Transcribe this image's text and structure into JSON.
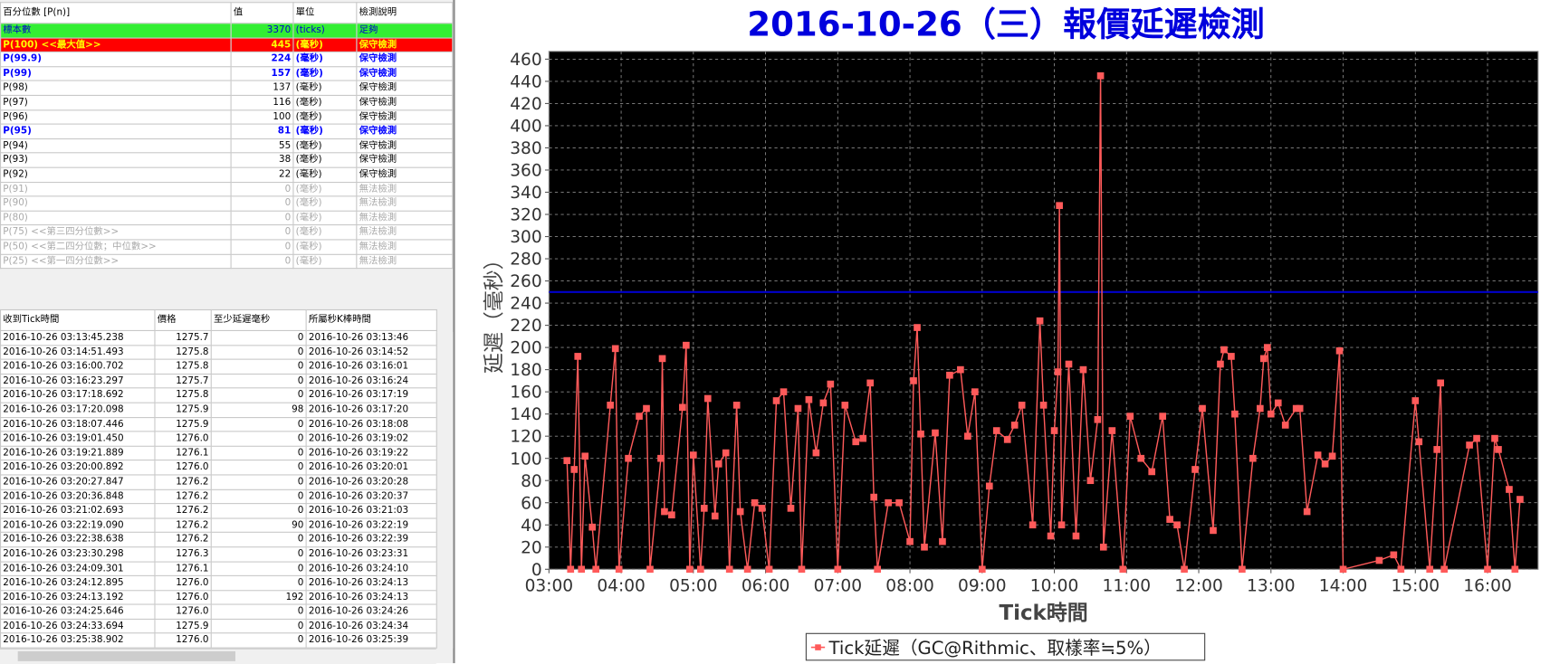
{
  "percentile_table": {
    "headers": [
      "百分位數 [P(n)]",
      "值",
      "單位",
      "檢測說明"
    ],
    "rows": [
      {
        "style": "green",
        "cells": [
          "標本數",
          "3370",
          "(ticks)",
          "足夠"
        ]
      },
      {
        "style": "red",
        "cells": [
          "P(100)  <<最大值>>",
          "445",
          "(毫秒)",
          "保守檢測"
        ]
      },
      {
        "style": "blue",
        "cells": [
          "P(99.9)",
          "224",
          "(毫秒)",
          "保守檢測"
        ]
      },
      {
        "style": "blue",
        "cells": [
          "P(99)",
          "157",
          "(毫秒)",
          "保守檢測"
        ]
      },
      {
        "style": "normal",
        "cells": [
          "P(98)",
          "137",
          "(毫秒)",
          "保守檢測"
        ]
      },
      {
        "style": "normal",
        "cells": [
          "P(97)",
          "116",
          "(毫秒)",
          "保守檢測"
        ]
      },
      {
        "style": "normal",
        "cells": [
          "P(96)",
          "100",
          "(毫秒)",
          "保守檢測"
        ]
      },
      {
        "style": "blue",
        "cells": [
          "P(95)",
          "81",
          "(毫秒)",
          "保守檢測"
        ]
      },
      {
        "style": "normal",
        "cells": [
          "P(94)",
          "55",
          "(毫秒)",
          "保守檢測"
        ]
      },
      {
        "style": "normal",
        "cells": [
          "P(93)",
          "38",
          "(毫秒)",
          "保守檢測"
        ]
      },
      {
        "style": "normal",
        "cells": [
          "P(92)",
          "22",
          "(毫秒)",
          "保守檢測"
        ]
      },
      {
        "style": "gray",
        "cells": [
          "P(91)",
          "0",
          "(毫秒)",
          "無法檢測"
        ]
      },
      {
        "style": "gray",
        "cells": [
          "P(90)",
          "0",
          "(毫秒)",
          "無法檢測"
        ]
      },
      {
        "style": "gray",
        "cells": [
          "P(80)",
          "0",
          "(毫秒)",
          "無法檢測"
        ]
      },
      {
        "style": "gray",
        "cells": [
          "P(75)  <<第三四分位數>>",
          "0",
          "(毫秒)",
          "無法檢測"
        ]
      },
      {
        "style": "gray",
        "cells": [
          "P(50)  <<第二四分位數；中位數>>",
          "0",
          "(毫秒)",
          "無法檢測"
        ]
      },
      {
        "style": "gray",
        "cells": [
          "P(25)  <<第一四分位數>>",
          "0",
          "(毫秒)",
          "無法檢測"
        ]
      }
    ]
  },
  "tick_table": {
    "headers": [
      "收到Tick時間",
      "價格",
      "至少延遲毫秒",
      "所屬秒K棒時間"
    ],
    "rows": [
      [
        "2016-10-26 03:13:45.238",
        "1275.7",
        "0",
        "2016-10-26 03:13:46"
      ],
      [
        "2016-10-26 03:14:51.493",
        "1275.8",
        "0",
        "2016-10-26 03:14:52"
      ],
      [
        "2016-10-26 03:16:00.702",
        "1275.8",
        "0",
        "2016-10-26 03:16:01"
      ],
      [
        "2016-10-26 03:16:23.297",
        "1275.7",
        "0",
        "2016-10-26 03:16:24"
      ],
      [
        "2016-10-26 03:17:18.692",
        "1275.8",
        "0",
        "2016-10-26 03:17:19"
      ],
      [
        "2016-10-26 03:17:20.098",
        "1275.9",
        "98",
        "2016-10-26 03:17:20"
      ],
      [
        "2016-10-26 03:18:07.446",
        "1275.9",
        "0",
        "2016-10-26 03:18:08"
      ],
      [
        "2016-10-26 03:19:01.450",
        "1276.0",
        "0",
        "2016-10-26 03:19:02"
      ],
      [
        "2016-10-26 03:19:21.889",
        "1276.1",
        "0",
        "2016-10-26 03:19:22"
      ],
      [
        "2016-10-26 03:20:00.892",
        "1276.0",
        "0",
        "2016-10-26 03:20:01"
      ],
      [
        "2016-10-26 03:20:27.847",
        "1276.2",
        "0",
        "2016-10-26 03:20:28"
      ],
      [
        "2016-10-26 03:20:36.848",
        "1276.2",
        "0",
        "2016-10-26 03:20:37"
      ],
      [
        "2016-10-26 03:21:02.693",
        "1276.2",
        "0",
        "2016-10-26 03:21:03"
      ],
      [
        "2016-10-26 03:22:19.090",
        "1276.2",
        "90",
        "2016-10-26 03:22:19"
      ],
      [
        "2016-10-26 03:22:38.638",
        "1276.2",
        "0",
        "2016-10-26 03:22:39"
      ],
      [
        "2016-10-26 03:23:30.298",
        "1276.3",
        "0",
        "2016-10-26 03:23:31"
      ],
      [
        "2016-10-26 03:24:09.301",
        "1276.1",
        "0",
        "2016-10-26 03:24:10"
      ],
      [
        "2016-10-26 03:24:12.895",
        "1276.0",
        "0",
        "2016-10-26 03:24:13"
      ],
      [
        "2016-10-26 03:24:13.192",
        "1276.0",
        "192",
        "2016-10-26 03:24:13"
      ],
      [
        "2016-10-26 03:24:25.646",
        "1276.0",
        "0",
        "2016-10-26 03:24:26"
      ],
      [
        "2016-10-26 03:24:33.694",
        "1275.9",
        "0",
        "2016-10-26 03:24:34"
      ],
      [
        "2016-10-26 03:25:38.902",
        "1276.0",
        "0",
        "2016-10-26 03:25:39"
      ]
    ]
  },
  "chart_data": {
    "type": "line",
    "title": "2016-10-26（三）報價延遲檢測",
    "x_label": "Tick時間",
    "y_label": "延遲（毫秒）",
    "xlim": [
      3,
      16.7
    ],
    "xticks": [
      {
        "value": 3,
        "label": "03:00"
      },
      {
        "value": 4,
        "label": "04:00"
      },
      {
        "value": 5,
        "label": "05:00"
      },
      {
        "value": 6,
        "label": "06:00"
      },
      {
        "value": 7,
        "label": "07:00"
      },
      {
        "value": 8,
        "label": "08:00"
      },
      {
        "value": 9,
        "label": "09:00"
      },
      {
        "value": 10,
        "label": "10:00"
      },
      {
        "value": 11,
        "label": "11:00"
      },
      {
        "value": 12,
        "label": "12:00"
      },
      {
        "value": 13,
        "label": "13:00"
      },
      {
        "value": 14,
        "label": "14:00"
      },
      {
        "value": 15,
        "label": "15:00"
      },
      {
        "value": 16,
        "label": "16:00"
      }
    ],
    "ylim": [
      0,
      467
    ],
    "yticks": [
      0,
      20,
      40,
      60,
      80,
      100,
      120,
      140,
      160,
      180,
      200,
      220,
      240,
      260,
      280,
      300,
      320,
      340,
      360,
      380,
      400,
      420,
      440,
      460
    ],
    "grid": true,
    "background": "#000000",
    "title_color": "#0000dd",
    "reference_line": {
      "value": 250,
      "color": "#0000cc"
    },
    "series": [
      {
        "name": "Tick延遲（GC@Rithmic、取樣率≒5%）",
        "color": "#ff5a5a",
        "x": [
          3.25,
          3.3,
          3.35,
          3.4,
          3.45,
          3.5,
          3.6,
          3.65,
          3.85,
          3.92,
          3.97,
          4.1,
          4.25,
          4.35,
          4.4,
          4.55,
          4.57,
          4.6,
          4.7,
          4.85,
          4.9,
          4.95,
          5.0,
          5.1,
          5.15,
          5.2,
          5.3,
          5.35,
          5.45,
          5.5,
          5.6,
          5.65,
          5.75,
          5.85,
          5.95,
          6.05,
          6.15,
          6.25,
          6.35,
          6.45,
          6.5,
          6.6,
          6.7,
          6.8,
          6.9,
          7.0,
          7.1,
          7.25,
          7.35,
          7.45,
          7.5,
          7.55,
          7.7,
          7.85,
          8.0,
          8.05,
          8.1,
          8.15,
          8.2,
          8.35,
          8.45,
          8.55,
          8.7,
          8.8,
          8.9,
          9.0,
          9.1,
          9.2,
          9.35,
          9.45,
          9.55,
          9.7,
          9.8,
          9.85,
          9.95,
          10.0,
          10.05,
          10.07,
          10.1,
          10.2,
          10.3,
          10.4,
          10.5,
          10.6,
          10.64,
          10.68,
          10.8,
          10.95,
          11.05,
          11.2,
          11.35,
          11.5,
          11.6,
          11.7,
          11.8,
          11.95,
          12.05,
          12.2,
          12.3,
          12.35,
          12.45,
          12.5,
          12.6,
          12.75,
          12.85,
          12.9,
          12.95,
          13.0,
          13.1,
          13.2,
          13.35,
          13.4,
          13.5,
          13.65,
          13.75,
          13.85,
          13.95,
          14.0,
          14.5,
          14.7,
          14.8,
          15.0,
          15.05,
          15.2,
          15.3,
          15.35,
          15.4,
          15.75,
          15.85,
          16.0,
          16.1,
          16.15,
          16.3,
          16.38,
          16.45
        ],
        "values": [
          98,
          0,
          90,
          192,
          0,
          102,
          38,
          0,
          148,
          199,
          0,
          100,
          138,
          145,
          0,
          100,
          190,
          52,
          49,
          146,
          202,
          0,
          103,
          0,
          55,
          154,
          48,
          95,
          105,
          0,
          148,
          52,
          0,
          60,
          55,
          0,
          152,
          160,
          55,
          145,
          0,
          153,
          105,
          150,
          167,
          0,
          148,
          115,
          118,
          168,
          65,
          0,
          60,
          60,
          25,
          170,
          218,
          122,
          20,
          123,
          25,
          175,
          180,
          120,
          160,
          0,
          75,
          125,
          117,
          130,
          148,
          40,
          224,
          148,
          30,
          125,
          178,
          328,
          40,
          185,
          30,
          180,
          80,
          135,
          445,
          20,
          125,
          0,
          138,
          100,
          88,
          138,
          45,
          40,
          0,
          90,
          145,
          35,
          185,
          198,
          192,
          140,
          0,
          100,
          145,
          190,
          200,
          140,
          150,
          130,
          145,
          145,
          52,
          103,
          95,
          102,
          197,
          0,
          8,
          13,
          0,
          152,
          115,
          0,
          108,
          168,
          0,
          112,
          118,
          0,
          118,
          108,
          72,
          0,
          63
        ]
      }
    ]
  }
}
